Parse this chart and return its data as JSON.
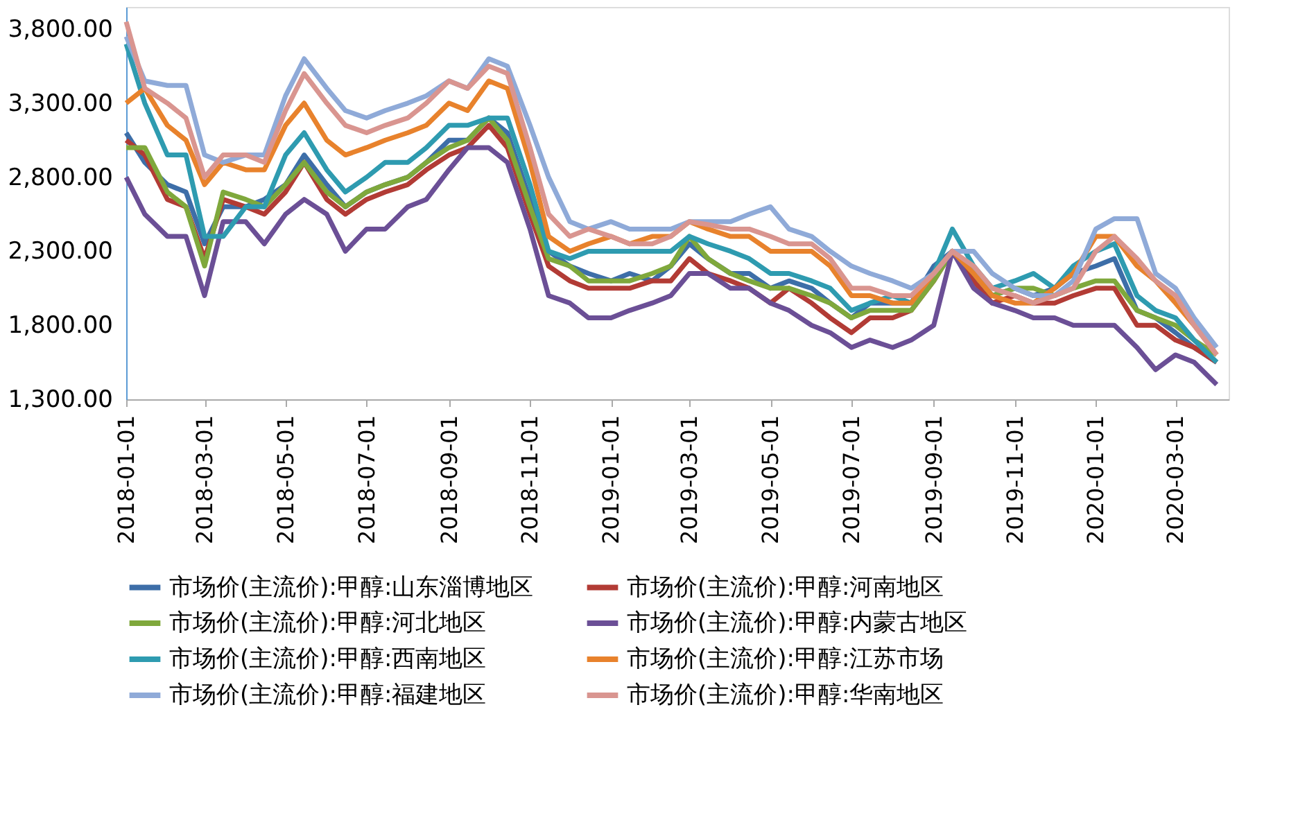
{
  "chart_data": {
    "type": "line",
    "x": [
      "2018-01-01",
      "2018-01-15",
      "2018-02-01",
      "2018-02-15",
      "2018-03-01",
      "2018-03-15",
      "2018-04-01",
      "2018-04-15",
      "2018-05-01",
      "2018-05-15",
      "2018-06-01",
      "2018-06-15",
      "2018-07-01",
      "2018-07-15",
      "2018-08-01",
      "2018-08-15",
      "2018-09-01",
      "2018-09-15",
      "2018-10-01",
      "2018-10-15",
      "2018-11-01",
      "2018-11-15",
      "2018-12-01",
      "2018-12-15",
      "2019-01-01",
      "2019-01-15",
      "2019-02-01",
      "2019-02-15",
      "2019-03-01",
      "2019-03-15",
      "2019-04-01",
      "2019-04-15",
      "2019-05-01",
      "2019-05-15",
      "2019-06-01",
      "2019-06-15",
      "2019-07-01",
      "2019-07-15",
      "2019-08-01",
      "2019-08-15",
      "2019-09-01",
      "2019-09-15",
      "2019-10-01",
      "2019-10-15",
      "2019-11-01",
      "2019-11-15",
      "2019-12-01",
      "2019-12-15",
      "2020-01-01",
      "2020-01-15",
      "2020-02-01",
      "2020-02-15",
      "2020-03-01",
      "2020-03-15",
      "2020-04-01"
    ],
    "series": [
      {
        "name": "市场价(主流价):甲醇:山东淄博地区",
        "color": "#3d6ea8",
        "values": [
          3100,
          2900,
          2750,
          2700,
          2350,
          2600,
          2600,
          2650,
          2750,
          2950,
          2750,
          2600,
          2700,
          2750,
          2800,
          2900,
          3050,
          3050,
          3200,
          3100,
          2650,
          2300,
          2200,
          2150,
          2100,
          2150,
          2100,
          2200,
          2350,
          2250,
          2150,
          2150,
          2050,
          2100,
          2050,
          1950,
          1850,
          1950,
          1950,
          1950,
          2200,
          2300,
          2150,
          2000,
          2050,
          2000,
          2050,
          2150,
          2200,
          2250,
          1900,
          1850,
          1750,
          1650,
          1550
        ]
      },
      {
        "name": "市场价(主流价):甲醇:河南地区",
        "color": "#b23b35",
        "values": [
          3050,
          2950,
          2650,
          2600,
          2250,
          2650,
          2600,
          2550,
          2700,
          2900,
          2650,
          2550,
          2650,
          2700,
          2750,
          2850,
          2950,
          3000,
          3150,
          3000,
          2550,
          2200,
          2100,
          2050,
          2050,
          2050,
          2100,
          2100,
          2250,
          2150,
          2100,
          2050,
          1950,
          2050,
          1950,
          1850,
          1750,
          1850,
          1850,
          1900,
          2100,
          2300,
          2100,
          1950,
          2000,
          1950,
          1950,
          2000,
          2050,
          2050,
          1800,
          1800,
          1700,
          1650,
          1550
        ]
      },
      {
        "name": "市场价(主流价):甲醇:河北地区",
        "color": "#7fa83c",
        "values": [
          3000,
          3000,
          2700,
          2600,
          2200,
          2700,
          2650,
          2600,
          2750,
          2900,
          2700,
          2600,
          2700,
          2750,
          2800,
          2900,
          3000,
          3050,
          3200,
          3050,
          2600,
          2250,
          2200,
          2100,
          2100,
          2100,
          2150,
          2200,
          2400,
          2250,
          2150,
          2100,
          2050,
          2050,
          2000,
          1950,
          1850,
          1900,
          1900,
          1900,
          2100,
          2300,
          2150,
          2000,
          2050,
          2050,
          2000,
          2050,
          2100,
          2100,
          1900,
          1850,
          1800,
          1700,
          1600
        ]
      },
      {
        "name": "市场价(主流价):甲醇:内蒙古地区",
        "color": "#6b4f96",
        "values": [
          2800,
          2550,
          2400,
          2400,
          2000,
          2500,
          2500,
          2350,
          2550,
          2650,
          2550,
          2300,
          2450,
          2450,
          2600,
          2650,
          2850,
          3000,
          3000,
          2900,
          2450,
          2000,
          1950,
          1850,
          1850,
          1900,
          1950,
          2000,
          2150,
          2150,
          2050,
          2050,
          1950,
          1900,
          1800,
          1750,
          1650,
          1700,
          1650,
          1700,
          1800,
          2300,
          2050,
          1950,
          1900,
          1850,
          1850,
          1800,
          1800,
          1800,
          1650,
          1500,
          1600,
          1550,
          1400
        ]
      },
      {
        "name": "市场价(主流价):甲醇:西南地区",
        "color": "#2e9bb0",
        "values": [
          3700,
          3300,
          2950,
          2950,
          2400,
          2400,
          2600,
          2600,
          2950,
          3100,
          2850,
          2700,
          2800,
          2900,
          2900,
          3000,
          3150,
          3150,
          3200,
          3200,
          2750,
          2300,
          2250,
          2300,
          2300,
          2300,
          2300,
          2300,
          2400,
          2350,
          2300,
          2250,
          2150,
          2150,
          2100,
          2050,
          1900,
          1950,
          2000,
          1950,
          2150,
          2450,
          2200,
          2050,
          2100,
          2150,
          2050,
          2200,
          2300,
          2350,
          2000,
          1900,
          1850,
          1700,
          1550
        ]
      },
      {
        "name": "市场价(主流价):甲醇:江苏市场",
        "color": "#e8822c",
        "values": [
          3300,
          3400,
          3150,
          3050,
          2750,
          2900,
          2850,
          2850,
          3150,
          3300,
          3050,
          2950,
          3000,
          3050,
          3100,
          3150,
          3300,
          3250,
          3450,
          3400,
          2900,
          2400,
          2300,
          2350,
          2400,
          2350,
          2400,
          2400,
          2500,
          2450,
          2400,
          2400,
          2300,
          2300,
          2300,
          2200,
          2000,
          2000,
          1950,
          1950,
          2150,
          2300,
          2150,
          2000,
          1950,
          1950,
          2050,
          2150,
          2400,
          2400,
          2200,
          2100,
          1950,
          1800,
          1600
        ]
      },
      {
        "name": "市场价(主流价):甲醇:福建地区",
        "color": "#8faad8",
        "values": [
          3750,
          3450,
          3420,
          3420,
          2950,
          2900,
          2950,
          2950,
          3350,
          3600,
          3400,
          3250,
          3200,
          3250,
          3300,
          3350,
          3450,
          3400,
          3600,
          3550,
          3150,
          2800,
          2500,
          2450,
          2500,
          2450,
          2450,
          2450,
          2500,
          2500,
          2500,
          2550,
          2600,
          2450,
          2400,
          2300,
          2200,
          2150,
          2100,
          2050,
          2150,
          2300,
          2300,
          2150,
          2050,
          2000,
          2000,
          2100,
          2450,
          2520,
          2520,
          2150,
          2050,
          1850,
          1650
        ]
      },
      {
        "name": "市场价(主流价):甲醇:华南地区",
        "color": "#d99590",
        "values": [
          3850,
          3400,
          3300,
          3200,
          2800,
          2950,
          2950,
          2900,
          3250,
          3500,
          3300,
          3150,
          3100,
          3150,
          3200,
          3300,
          3450,
          3400,
          3550,
          3500,
          3000,
          2550,
          2400,
          2450,
          2400,
          2350,
          2350,
          2400,
          2500,
          2480,
          2450,
          2450,
          2400,
          2350,
          2350,
          2250,
          2050,
          2050,
          2000,
          2000,
          2150,
          2300,
          2200,
          2050,
          2000,
          1950,
          2000,
          2050,
          2300,
          2400,
          2250,
          2100,
          2000,
          1800,
          1600
        ]
      }
    ],
    "xlim": [
      "2018-01-01",
      "2020-04-10"
    ],
    "xticks": [
      "2018-01-01",
      "2018-03-01",
      "2018-05-01",
      "2018-07-01",
      "2018-09-01",
      "2018-11-01",
      "2019-01-01",
      "2019-03-01",
      "2019-05-01",
      "2019-07-01",
      "2019-09-01",
      "2019-11-01",
      "2020-01-01",
      "2020-03-01"
    ],
    "ylim": [
      1300,
      3950
    ],
    "yticks": [
      {
        "value": 1300,
        "label": "1,300.00"
      },
      {
        "value": 1800,
        "label": "1,800.00"
      },
      {
        "value": 2300,
        "label": "2,300.00"
      },
      {
        "value": 2800,
        "label": "2,800.00"
      },
      {
        "value": 3300,
        "label": "3,300.00"
      },
      {
        "value": 3800,
        "label": "3,800.00"
      }
    ],
    "grid": false,
    "legend": "bottom",
    "marker": "none",
    "line_style": "solid"
  }
}
